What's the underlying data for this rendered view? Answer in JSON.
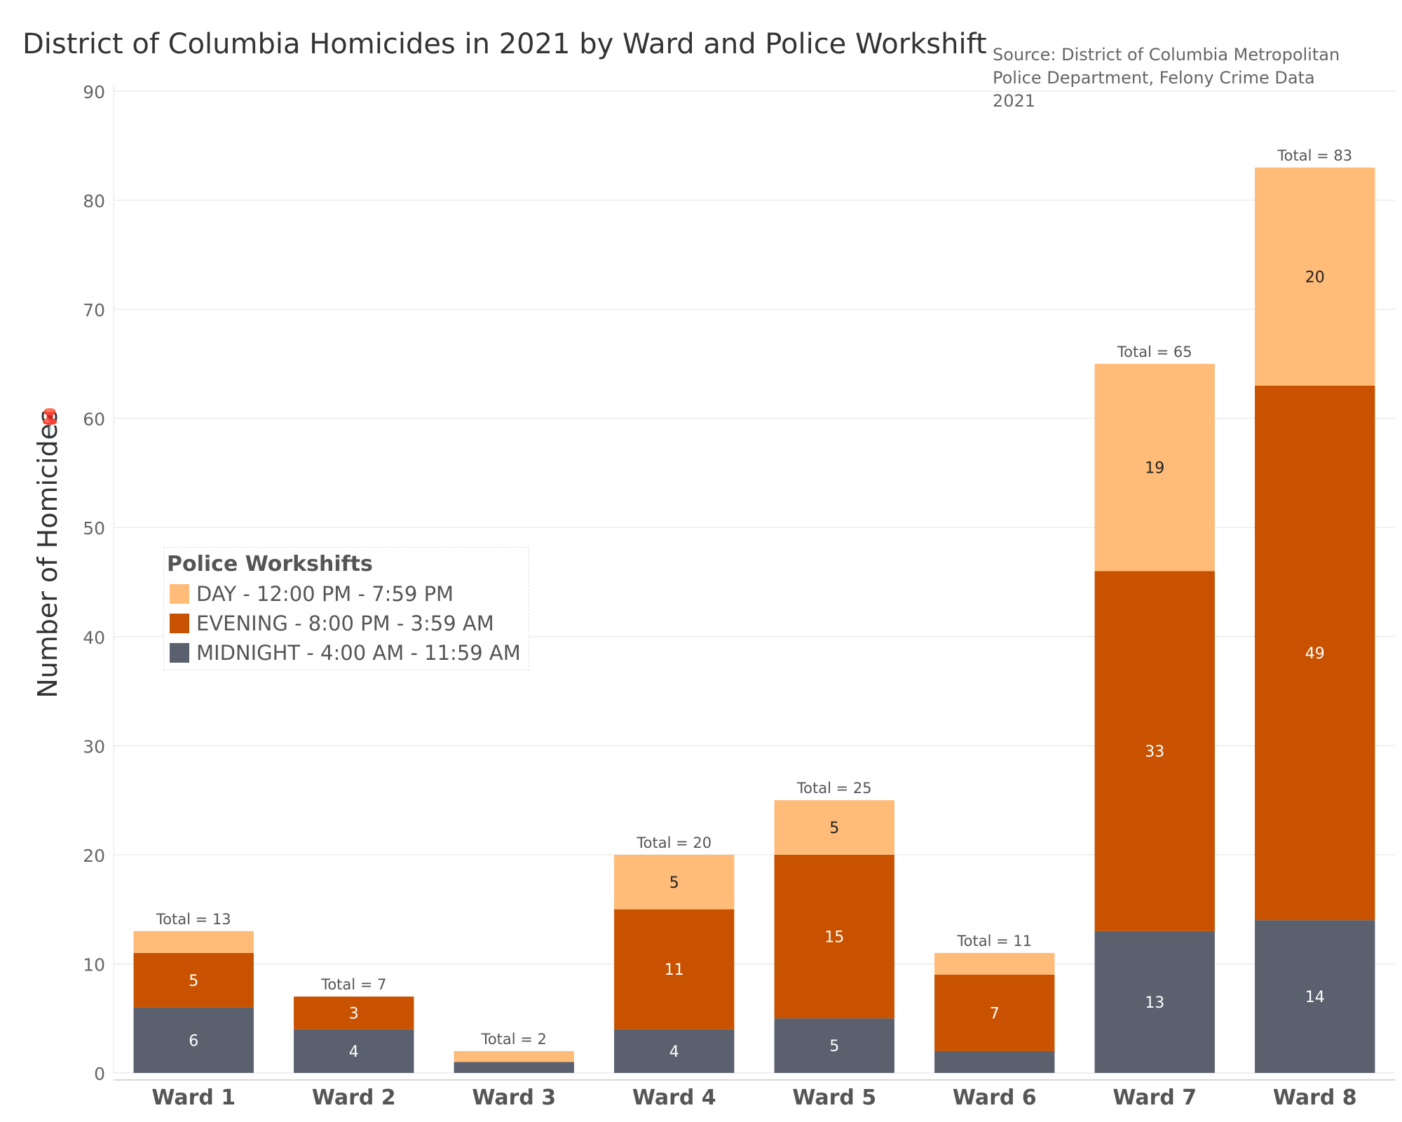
{
  "title": "District of Columbia Homicides in 2021 by Ward and Police Workshift",
  "source": "Source: District of Columbia Metropolitan Police Department, Felony Crime Data 2021",
  "colors": {
    "day": "#ffbb78",
    "evening": "#c85200",
    "midnight": "#5a606d",
    "gridline": "#ececec",
    "axis": "#cccccc"
  },
  "legend": {
    "title": "Police Workshifts",
    "items": [
      {
        "label": "DAY  -  12:00 PM - 7:59 PM",
        "color": "#ffbb78"
      },
      {
        "label": "EVENING  -  8:00 PM - 3:59 AM",
        "color": "#c85200"
      },
      {
        "label": "MIDNIGHT  -  4:00 AM - 11:59 AM",
        "color": "#5a606d"
      }
    ]
  },
  "chart_data": {
    "type": "bar",
    "stacked": true,
    "title": "District of Columbia Homicides in 2021 by Ward and Police Workshift",
    "xlabel": "",
    "ylabel": "Number of Homicides",
    "ylim": [
      0,
      90
    ],
    "yticks": [
      0,
      10,
      20,
      30,
      40,
      50,
      60,
      70,
      80,
      90
    ],
    "grid": true,
    "legend_position": "left",
    "categories": [
      "Ward 1",
      "Ward 2",
      "Ward 3",
      "Ward 4",
      "Ward 5",
      "Ward 6",
      "Ward 7",
      "Ward 8"
    ],
    "series": [
      {
        "name": "MIDNIGHT  -  4:00 AM - 11:59 AM",
        "key": "midnight",
        "values": [
          6,
          4,
          1,
          4,
          5,
          2,
          13,
          14
        ],
        "labels": [
          "6",
          "4",
          "",
          "4",
          "5",
          "",
          "13",
          "14"
        ]
      },
      {
        "name": "EVENING  -  8:00 PM - 3:59 AM",
        "key": "evening",
        "values": [
          5,
          3,
          0,
          11,
          15,
          7,
          33,
          49
        ],
        "labels": [
          "5",
          "3",
          "",
          "11",
          "15",
          "7",
          "33",
          "49"
        ]
      },
      {
        "name": "DAY  -  12:00 PM - 7:59 PM",
        "key": "day",
        "values": [
          2,
          0,
          1,
          5,
          5,
          2,
          19,
          20
        ],
        "labels": [
          "",
          "",
          "",
          "5",
          "5",
          "",
          "19",
          "20"
        ]
      }
    ],
    "totals": [
      13,
      7,
      2,
      20,
      25,
      11,
      65,
      83
    ],
    "total_labels": [
      "Total = 13",
      "Total = 7",
      "Total = 2",
      "Total = 20",
      "Total = 25",
      "Total = 11",
      "Total = 65",
      "Total = 83"
    ]
  }
}
